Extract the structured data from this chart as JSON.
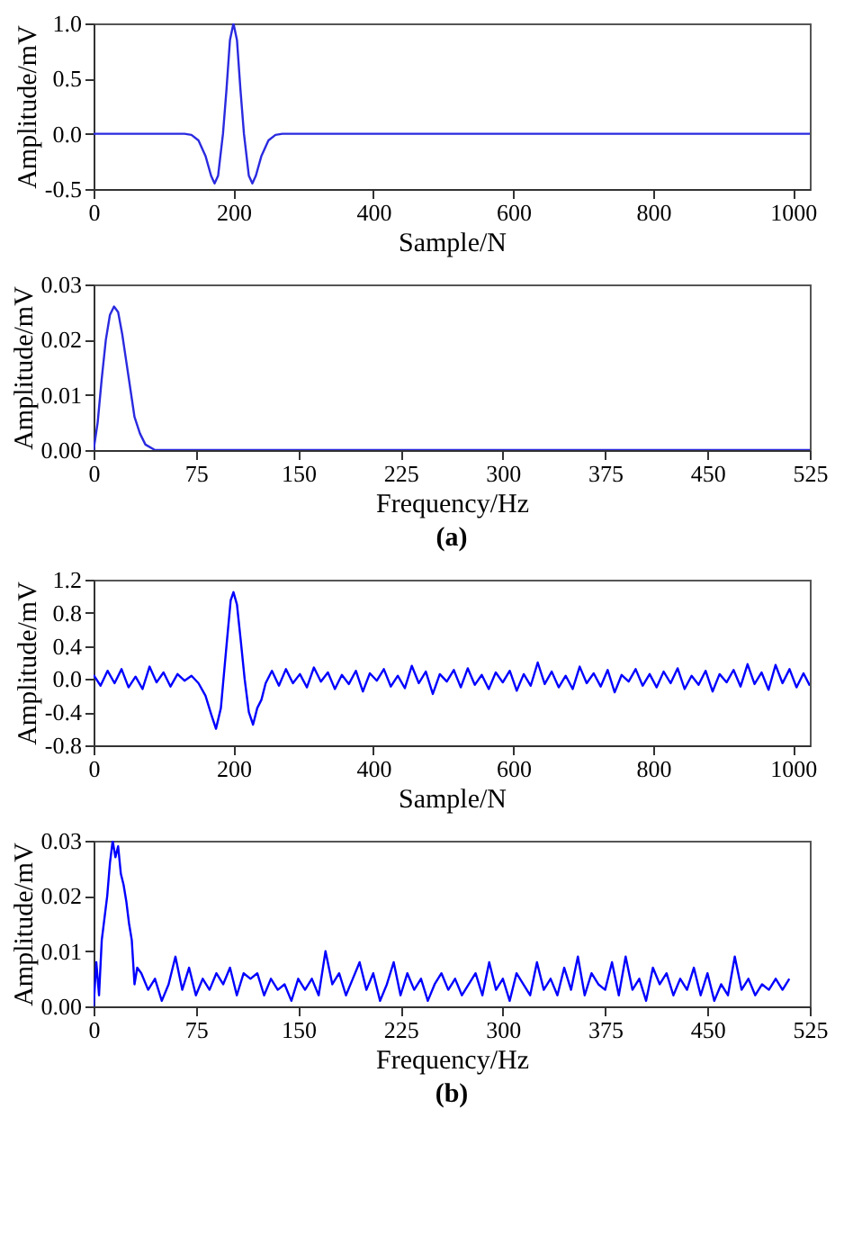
{
  "chart_data": [
    {
      "type": "line",
      "xlabel": "Sample/N",
      "ylabel": "Amplitude/mV",
      "xlim": [
        0,
        1024
      ],
      "xticks": [
        0,
        200,
        400,
        600,
        800,
        1000
      ],
      "ylim": [
        -0.5,
        1.0
      ],
      "yticks": [
        {
          "value": -0.5,
          "label": "-0.5"
        },
        {
          "value": 0,
          "label": "0.0"
        },
        {
          "value": 0.5,
          "label": "0.5"
        },
        {
          "value": 1.0,
          "label": "1.0"
        }
      ],
      "series": [
        {
          "color": "#2a2ae0",
          "x": [
            0,
            130,
            140,
            150,
            160,
            168,
            173,
            178,
            185,
            190,
            195,
            200,
            205,
            210,
            215,
            222,
            227,
            232,
            240,
            250,
            260,
            270,
            1024
          ],
          "values": [
            0,
            0,
            -0.01,
            -0.06,
            -0.2,
            -0.38,
            -0.45,
            -0.38,
            0.0,
            0.4,
            0.85,
            1.0,
            0.85,
            0.4,
            0.0,
            -0.38,
            -0.45,
            -0.38,
            -0.2,
            -0.06,
            -0.01,
            0,
            0
          ]
        }
      ]
    },
    {
      "type": "line",
      "xlabel": "Frequency/Hz",
      "ylabel": "Amplitude/mV",
      "annotations": [
        "(a)"
      ],
      "xlim": [
        0,
        525
      ],
      "xticks": [
        0,
        75,
        150,
        225,
        300,
        375,
        450,
        525
      ],
      "ylim": [
        0,
        0.03
      ],
      "yticks": [
        {
          "value": 0,
          "label": "0.00"
        },
        {
          "value": 0.01,
          "label": "0.01"
        },
        {
          "value": 0.02,
          "label": "0.02"
        },
        {
          "value": 0.03,
          "label": "0.03"
        }
      ],
      "series": [
        {
          "color": "#2a2ae0",
          "x": [
            0,
            3,
            6,
            9,
            12,
            15,
            18,
            21,
            24,
            27,
            30,
            34,
            38,
            45,
            525
          ],
          "values": [
            0,
            0.005,
            0.013,
            0.02,
            0.0245,
            0.026,
            0.025,
            0.021,
            0.016,
            0.011,
            0.006,
            0.003,
            0.001,
            0,
            0
          ]
        }
      ]
    },
    {
      "type": "line",
      "xlabel": "Sample/N",
      "ylabel": "Amplitude/mV",
      "xlim": [
        0,
        1024
      ],
      "xticks": [
        0,
        200,
        400,
        600,
        800,
        1000
      ],
      "ylim": [
        -0.8,
        1.2
      ],
      "yticks": [
        {
          "value": -0.8,
          "label": "-0.8"
        },
        {
          "value": -0.4,
          "label": "-0.4"
        },
        {
          "value": 0,
          "label": "0.0"
        },
        {
          "value": 0.4,
          "label": "0.4"
        },
        {
          "value": 0.8,
          "label": "0.8"
        },
        {
          "value": 1.2,
          "label": "1.2"
        }
      ],
      "series": [
        {
          "color": "#0000ff",
          "x": [
            0,
            10,
            20,
            30,
            40,
            50,
            60,
            70,
            80,
            90,
            100,
            110,
            120,
            130,
            140,
            150,
            160,
            168,
            175,
            182,
            190,
            196,
            200,
            205,
            210,
            216,
            222,
            228,
            234,
            240,
            246,
            255,
            265,
            275,
            285,
            295,
            305,
            315,
            325,
            335,
            345,
            355,
            365,
            375,
            385,
            395,
            405,
            415,
            425,
            435,
            445,
            455,
            465,
            475,
            485,
            495,
            505,
            515,
            525,
            535,
            545,
            555,
            565,
            575,
            585,
            595,
            605,
            615,
            625,
            635,
            645,
            655,
            665,
            675,
            685,
            695,
            705,
            715,
            725,
            735,
            745,
            755,
            765,
            775,
            785,
            795,
            805,
            815,
            825,
            835,
            845,
            855,
            865,
            875,
            885,
            895,
            905,
            915,
            925,
            935,
            945,
            955,
            965,
            975,
            985,
            995,
            1005,
            1015,
            1024
          ],
          "values": [
            0.05,
            -0.08,
            0.1,
            -0.05,
            0.12,
            -0.1,
            0.03,
            -0.12,
            0.15,
            -0.04,
            0.08,
            -0.09,
            0.06,
            -0.02,
            0.04,
            -0.05,
            -0.2,
            -0.42,
            -0.6,
            -0.35,
            0.4,
            0.95,
            1.05,
            0.9,
            0.5,
            0.0,
            -0.4,
            -0.55,
            -0.35,
            -0.25,
            -0.05,
            0.1,
            -0.08,
            0.12,
            -0.05,
            0.06,
            -0.1,
            0.14,
            -0.03,
            0.08,
            -0.12,
            0.05,
            -0.06,
            0.1,
            -0.15,
            0.07,
            -0.02,
            0.12,
            -0.09,
            0.04,
            -0.11,
            0.16,
            -0.05,
            0.09,
            -0.18,
            0.06,
            -0.03,
            0.11,
            -0.1,
            0.13,
            -0.07,
            0.05,
            -0.12,
            0.08,
            -0.04,
            0.1,
            -0.14,
            0.06,
            -0.08,
            0.2,
            -0.06,
            0.09,
            -0.1,
            0.04,
            -0.12,
            0.15,
            -0.05,
            0.07,
            -0.09,
            0.11,
            -0.16,
            0.05,
            -0.03,
            0.12,
            -0.08,
            0.06,
            -0.1,
            0.09,
            -0.05,
            0.13,
            -0.12,
            0.04,
            -0.07,
            0.1,
            -0.15,
            0.06,
            -0.04,
            0.11,
            -0.09,
            0.18,
            -0.06,
            0.08,
            -0.13,
            0.17,
            -0.05,
            0.12,
            -0.1,
            0.07,
            -0.08
          ]
        }
      ]
    },
    {
      "type": "line",
      "xlabel": "Frequency/Hz",
      "ylabel": "Amplitude/mV",
      "annotations": [
        "(b)"
      ],
      "xlim": [
        0,
        525
      ],
      "xticks": [
        0,
        75,
        150,
        225,
        300,
        375,
        450,
        525
      ],
      "ylim": [
        0,
        0.03
      ],
      "yticks": [
        {
          "value": 0,
          "label": "0.00"
        },
        {
          "value": 0.01,
          "label": "0.01"
        },
        {
          "value": 0.02,
          "label": "0.02"
        },
        {
          "value": 0.03,
          "label": "0.03"
        }
      ],
      "series": [
        {
          "color": "#0000ff",
          "x": [
            0,
            2,
            4,
            6,
            10,
            12,
            14,
            16,
            18,
            20,
            22,
            24,
            26,
            28,
            30,
            32,
            35,
            40,
            45,
            50,
            55,
            60,
            65,
            70,
            75,
            80,
            85,
            90,
            95,
            100,
            105,
            110,
            115,
            120,
            125,
            130,
            135,
            140,
            145,
            150,
            155,
            160,
            165,
            170,
            175,
            180,
            185,
            190,
            195,
            200,
            205,
            210,
            215,
            220,
            225,
            230,
            235,
            240,
            245,
            250,
            255,
            260,
            265,
            270,
            275,
            280,
            285,
            290,
            295,
            300,
            305,
            310,
            315,
            320,
            325,
            330,
            335,
            340,
            345,
            350,
            355,
            360,
            365,
            370,
            375,
            380,
            385,
            390,
            395,
            400,
            405,
            410,
            415,
            420,
            425,
            430,
            435,
            440,
            445,
            450,
            455,
            460,
            465,
            470,
            475,
            480,
            485,
            490,
            495,
            500,
            505,
            510
          ],
          "values": [
            0,
            0.008,
            0.002,
            0.012,
            0.02,
            0.026,
            0.03,
            0.027,
            0.029,
            0.024,
            0.022,
            0.019,
            0.015,
            0.012,
            0.004,
            0.007,
            0.006,
            0.003,
            0.005,
            0.001,
            0.004,
            0.009,
            0.003,
            0.007,
            0.002,
            0.005,
            0.003,
            0.006,
            0.004,
            0.007,
            0.002,
            0.006,
            0.005,
            0.006,
            0.002,
            0.005,
            0.003,
            0.004,
            0.001,
            0.005,
            0.003,
            0.005,
            0.002,
            0.01,
            0.004,
            0.006,
            0.002,
            0.005,
            0.008,
            0.003,
            0.006,
            0.001,
            0.004,
            0.008,
            0.002,
            0.006,
            0.003,
            0.005,
            0.001,
            0.004,
            0.006,
            0.003,
            0.005,
            0.002,
            0.004,
            0.006,
            0.002,
            0.008,
            0.003,
            0.005,
            0.001,
            0.006,
            0.004,
            0.002,
            0.008,
            0.003,
            0.005,
            0.002,
            0.007,
            0.003,
            0.009,
            0.002,
            0.006,
            0.004,
            0.003,
            0.008,
            0.002,
            0.009,
            0.003,
            0.005,
            0.001,
            0.007,
            0.004,
            0.006,
            0.002,
            0.005,
            0.003,
            0.007,
            0.002,
            0.006,
            0.001,
            0.004,
            0.002,
            0.009,
            0.003,
            0.005,
            0.002,
            0.004,
            0.003,
            0.005,
            0.003,
            0.005
          ]
        }
      ]
    }
  ]
}
